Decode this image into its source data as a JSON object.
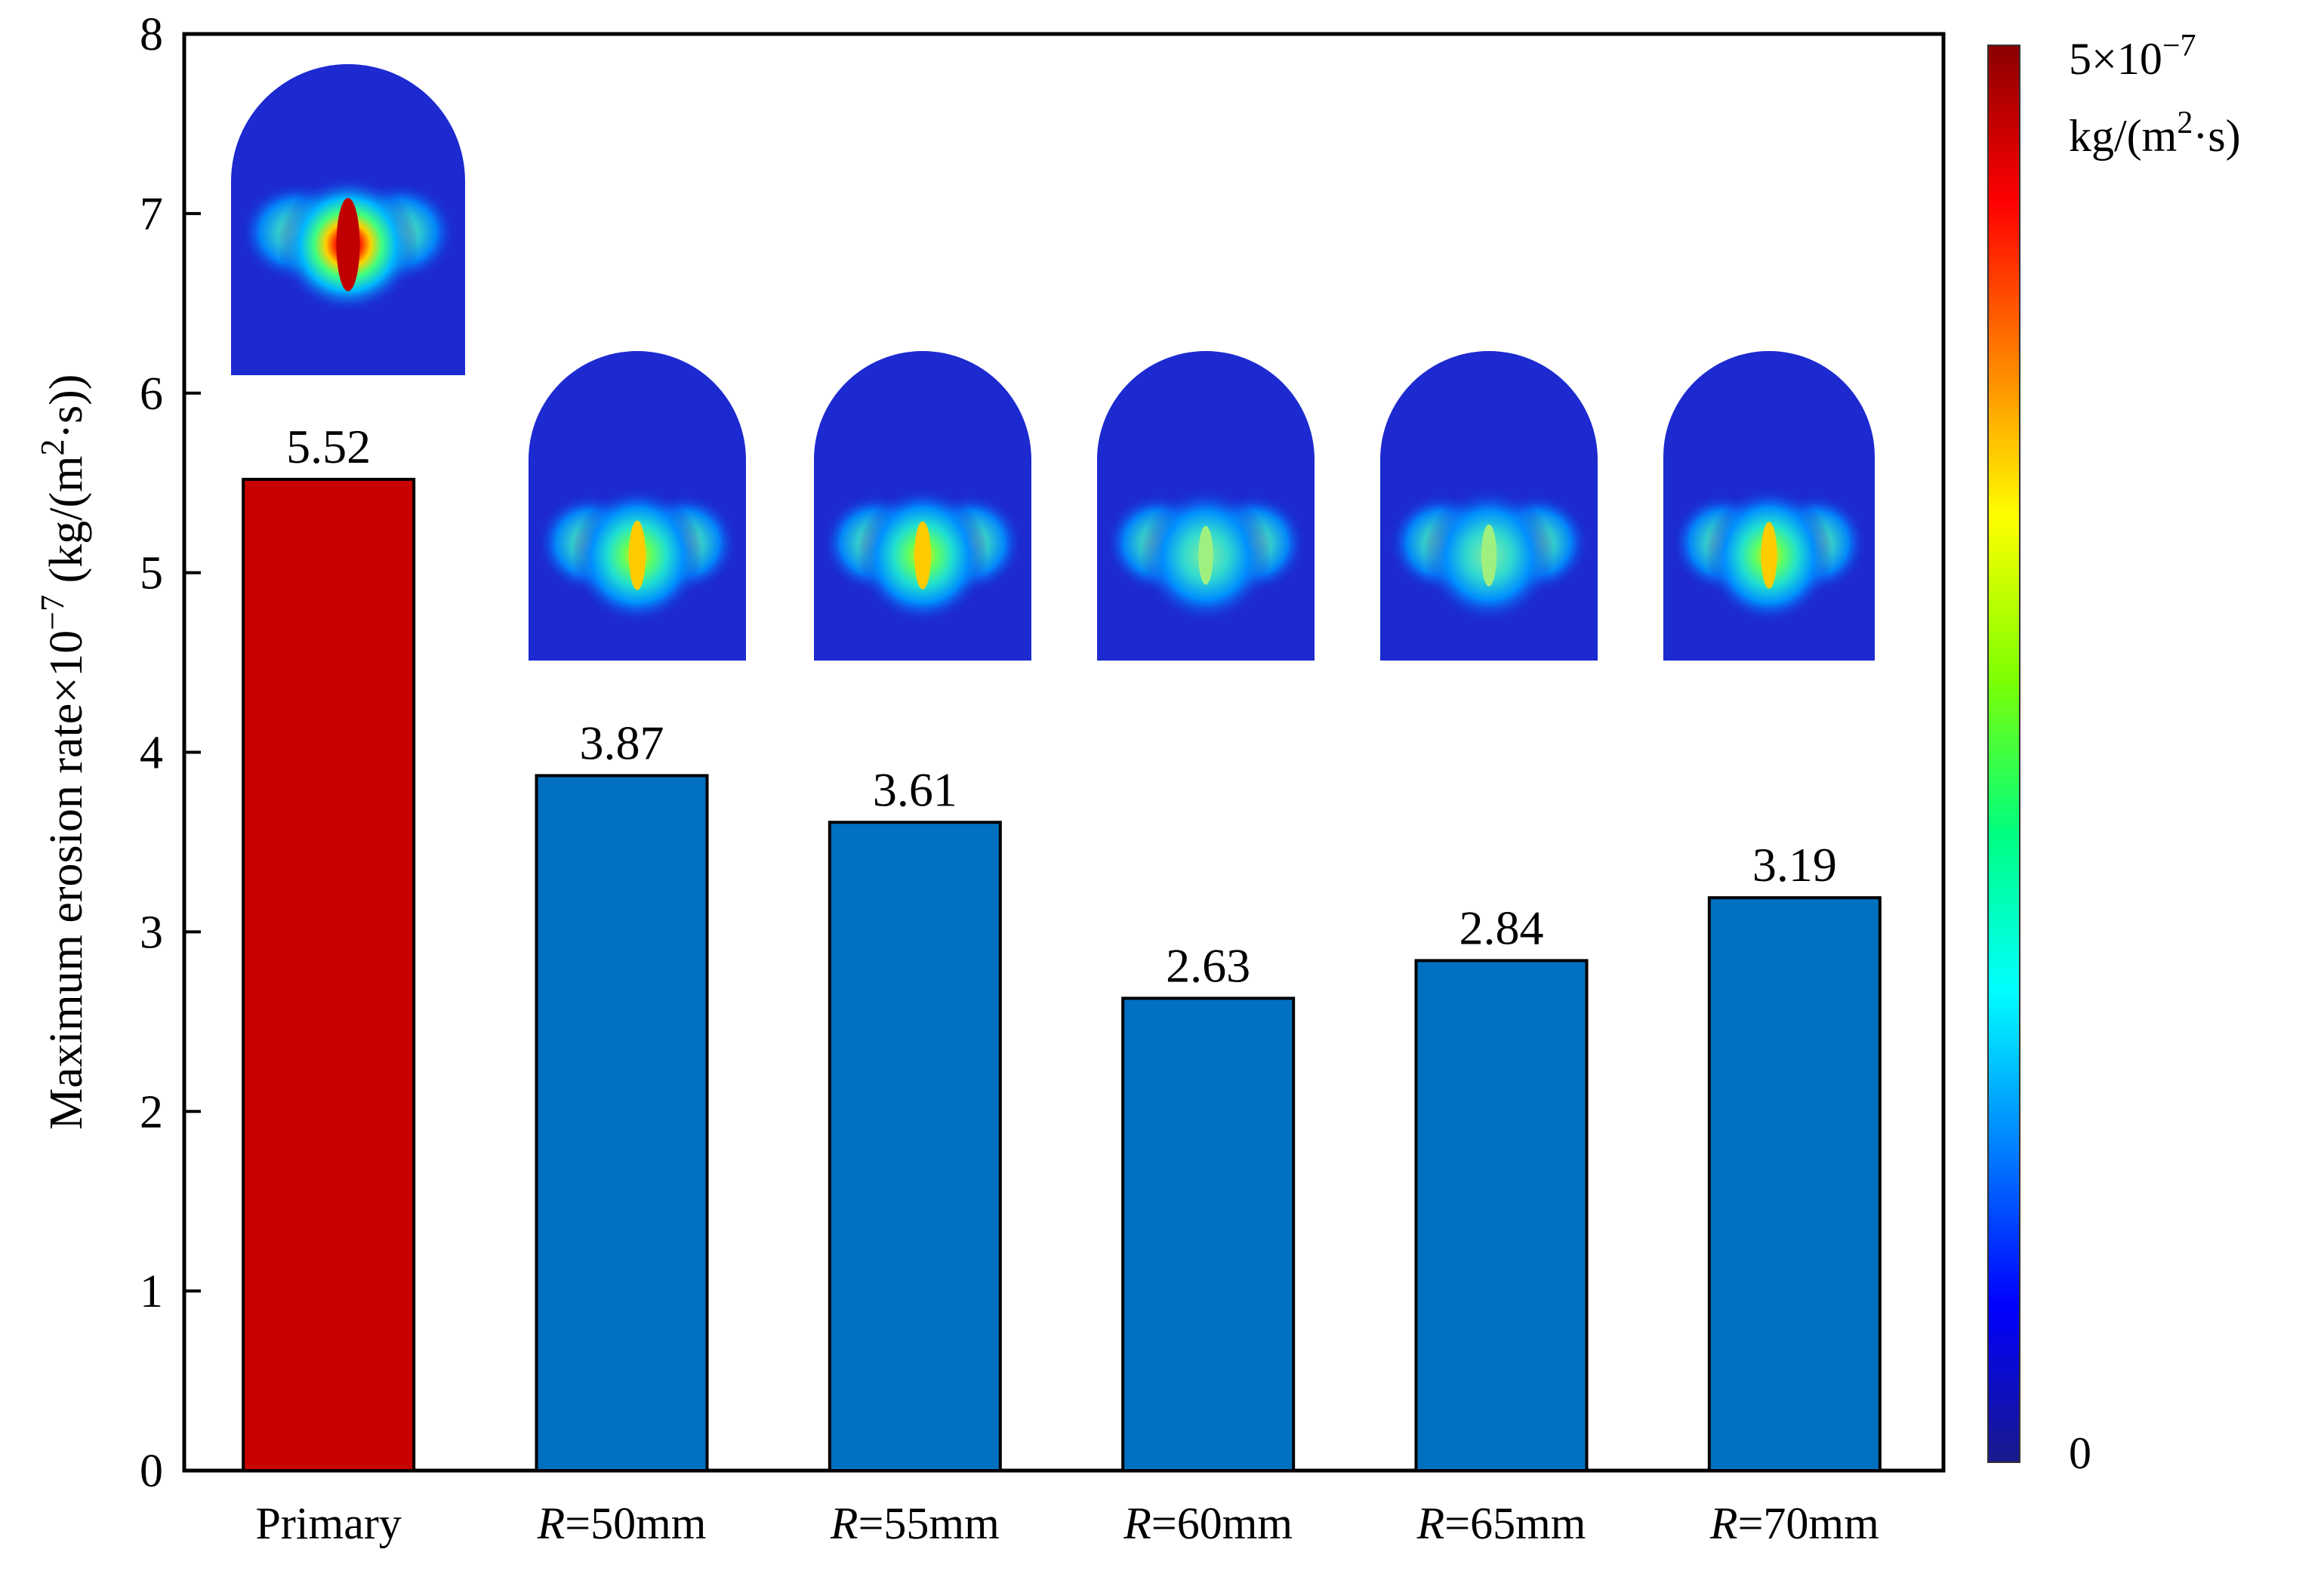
{
  "chart_data": {
    "type": "bar",
    "categories": [
      {
        "prefix": "",
        "italic": "",
        "text": "Primary"
      },
      {
        "prefix": "",
        "italic": "R",
        "text": "=50mm"
      },
      {
        "prefix": "",
        "italic": "R",
        "text": "=55mm"
      },
      {
        "prefix": "",
        "italic": "R",
        "text": "=60mm"
      },
      {
        "prefix": "",
        "italic": "R",
        "text": "=65mm"
      },
      {
        "prefix": "",
        "italic": "R",
        "text": "=70mm"
      }
    ],
    "values": [
      5.52,
      3.87,
      3.61,
      2.63,
      2.84,
      3.19
    ],
    "value_labels": [
      "5.52",
      "3.87",
      "3.61",
      "2.63",
      "2.84",
      "3.19"
    ],
    "bar_colors": [
      "#c80000",
      "#0070c0",
      "#0070c0",
      "#0070c0",
      "#0070c0",
      "#0070c0"
    ],
    "ylim": [
      0,
      8
    ],
    "yticks": [
      0,
      1,
      2,
      3,
      4,
      5,
      6,
      7,
      8
    ],
    "ylabel": {
      "main": "Maximum erosion rate×10",
      "exp": "−7",
      "unit_a": " (kg/(m",
      "unit_sup": "2",
      "unit_b": "·s))"
    },
    "xlabel": "",
    "legend": "none",
    "grid": false,
    "insets": {
      "description_kind": "erosion-contour-thumbnails",
      "count": 6,
      "intensity": [
        1.0,
        0.62,
        0.6,
        0.45,
        0.5,
        0.58
      ]
    },
    "colorbar": {
      "max_label_mantissa": "5×10",
      "max_label_exp": "−7",
      "unit_a": "kg/(m",
      "unit_sup": "2",
      "unit_b": "·s)",
      "min_label": "0",
      "colors": [
        "#1a1a8c",
        "#0000ff",
        "#0080ff",
        "#00ffff",
        "#00ff80",
        "#80ff00",
        "#ffff00",
        "#ff8000",
        "#ff0000",
        "#8b0000"
      ]
    }
  }
}
